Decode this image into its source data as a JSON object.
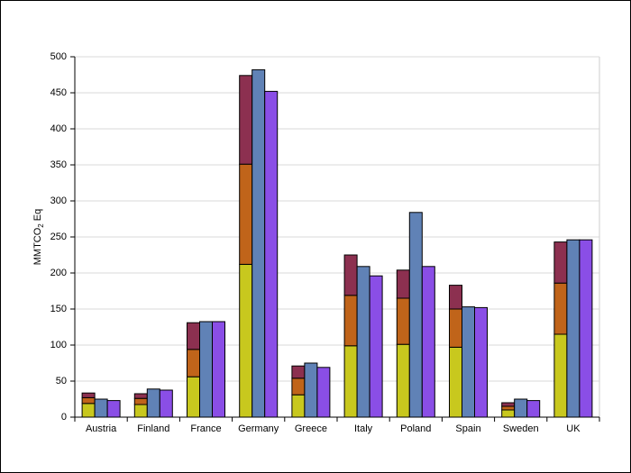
{
  "chart_data": {
    "type": "bar",
    "ylabel": {
      "text": "MMTCO",
      "subscript": "2",
      "suffix": "Eq"
    },
    "categories": [
      "Austria",
      "Finland",
      "France",
      "Germany",
      "Greece",
      "Italy",
      "Poland",
      "Spain",
      "Sweden",
      "UK"
    ],
    "series": [
      {
        "color": "#c8c81e",
        "stacked": true,
        "values": [
          19,
          17.5,
          56,
          212,
          31,
          99,
          101,
          97,
          10,
          115
        ]
      },
      {
        "color": "#c0641a",
        "stacked": true,
        "values": [
          8,
          8.5,
          38,
          139,
          23,
          70,
          64,
          53,
          5,
          71
        ]
      },
      {
        "color": "#8c3050",
        "stacked": true,
        "values": [
          6.5,
          6.5,
          37,
          123,
          17,
          56,
          39,
          33,
          5,
          57
        ]
      },
      {
        "color": "#6082b6",
        "stacked": false,
        "values": [
          25,
          39,
          132.5,
          482,
          75,
          209,
          284,
          153,
          25,
          246
        ]
      },
      {
        "color": "#8a4ee6",
        "stacked": false,
        "values": [
          23,
          37.5,
          132.5,
          452,
          69,
          196,
          209,
          152,
          23,
          246
        ]
      }
    ],
    "ylim": [
      0,
      500
    ],
    "yticks": [
      0,
      50,
      100,
      150,
      200,
      250,
      300,
      350,
      400,
      450,
      500
    ],
    "grid": true
  }
}
